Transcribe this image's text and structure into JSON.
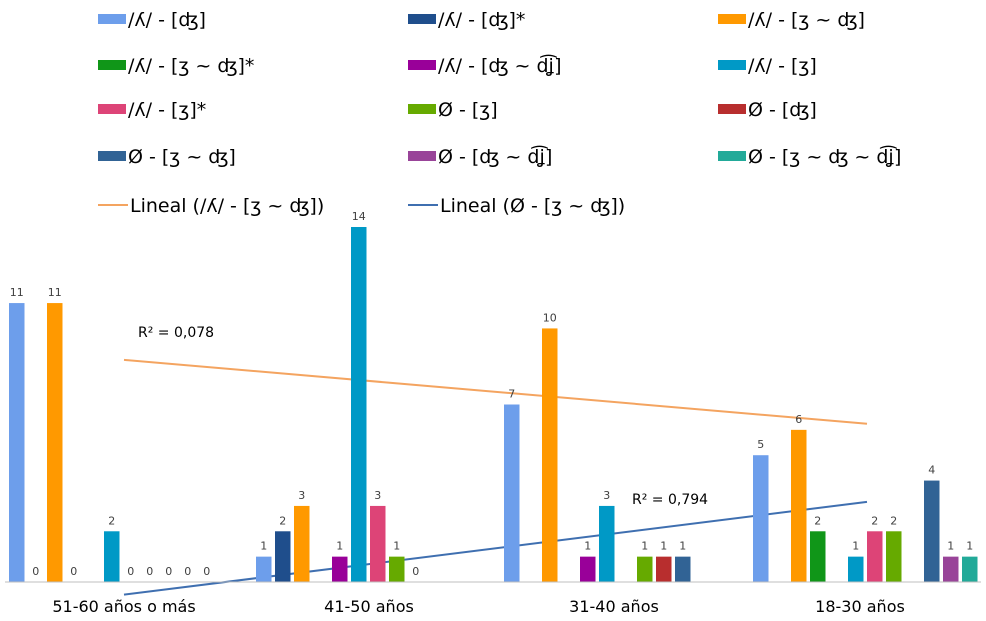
{
  "chart_data": {
    "type": "bar",
    "title": "",
    "xlabel": "",
    "ylabel": "",
    "ylim": [
      0,
      14
    ],
    "grid": false,
    "legend_position": "top",
    "categories": [
      "51-60 años o más",
      "41-50 años",
      "31-40 años",
      "18-30 años"
    ],
    "series": [
      {
        "name": "/ʎ/ - [ʤ]",
        "color": "#6d9eeb",
        "values": [
          11,
          1,
          7,
          5
        ]
      },
      {
        "name": "/ʎ/ - [ʤ]*",
        "color": "#1f4e8c",
        "values": [
          0,
          2,
          null,
          null
        ]
      },
      {
        "name": "/ʎ/ - [ʒ ~ ʤ]",
        "color": "#ff9900",
        "values": [
          11,
          3,
          10,
          6
        ]
      },
      {
        "name": "/ʎ/ - [ʒ ~ ʤ]*",
        "color": "#109618",
        "values": [
          0,
          null,
          null,
          2
        ]
      },
      {
        "name": "/ʎ/ - [ʤ ~ d͡ʝ]",
        "color": "#990099",
        "values": [
          null,
          1,
          1,
          null
        ]
      },
      {
        "name": "/ʎ/ - [ʒ]",
        "color": "#0099c6",
        "values": [
          2,
          14,
          3,
          1
        ]
      },
      {
        "name": "/ʎ/ - [ʒ]*",
        "color": "#dd4477",
        "values": [
          0,
          3,
          null,
          2
        ]
      },
      {
        "name": "Ø - [ʒ]",
        "color": "#66aa00",
        "values": [
          0,
          1,
          1,
          2
        ]
      },
      {
        "name": "Ø - [ʤ]",
        "color": "#b82e2e",
        "values": [
          0,
          0,
          1,
          null
        ]
      },
      {
        "name": "Ø - [ʒ ~ ʤ]",
        "color": "#316395",
        "values": [
          0,
          null,
          1,
          4
        ]
      },
      {
        "name": "Ø - [ʤ ~ d͡ʝ]",
        "color": "#994499",
        "values": [
          0,
          null,
          null,
          1
        ]
      },
      {
        "name": "Ø - [ʒ ~ ʤ ~ d͡ʝ]",
        "color": "#22aa99",
        "values": [
          null,
          null,
          null,
          1
        ]
      }
    ],
    "trendlines": [
      {
        "name": "Lineal (/ʎ/ - [ʒ ~ ʤ])",
        "color": "#f4a460",
        "series": "/ʎ/ - [ʒ ~ ʤ]",
        "start": 8.76,
        "end": 6.24,
        "r2_label": "R² = 0,078"
      },
      {
        "name": "Lineal (Ø - [ʒ ~ ʤ])",
        "color": "#3f6fb0",
        "series": "Ø - [ʒ ~ ʤ]",
        "start": -0.5,
        "end": 3.16,
        "r2_label": "R² = 0,794"
      }
    ]
  }
}
